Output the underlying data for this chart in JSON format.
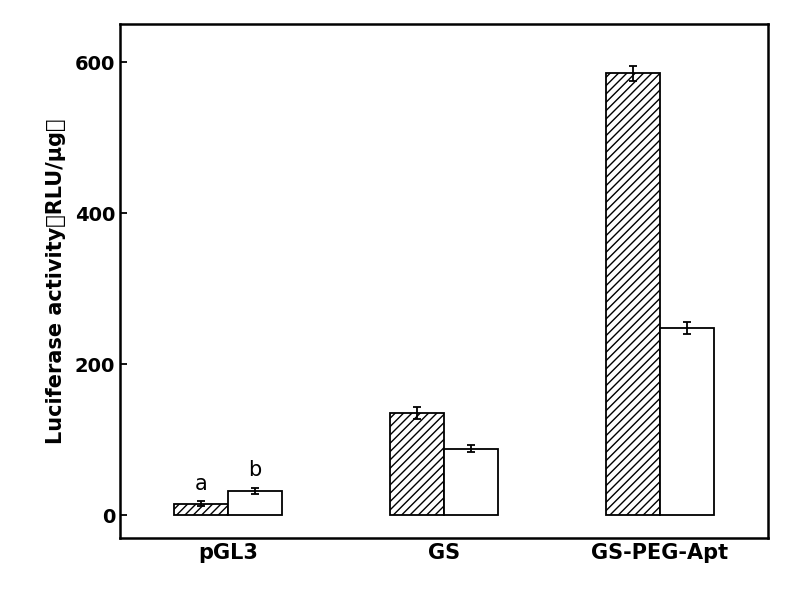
{
  "groups": [
    "pGL3",
    "GS",
    "GS-PEG-Apt"
  ],
  "hatched_values": [
    15,
    135,
    585
  ],
  "plain_values": [
    32,
    88,
    248
  ],
  "hatched_errors": [
    3,
    8,
    10
  ],
  "plain_errors": [
    4,
    5,
    8
  ],
  "annotations_hatched": [
    "a",
    null,
    null
  ],
  "annotations_plain": [
    "b",
    null,
    null
  ],
  "ylabel": "Luciferase activity（RLU/μg）",
  "ylim": [
    -30,
    650
  ],
  "yticks": [
    0,
    200,
    400,
    600
  ],
  "bar_width": 0.3,
  "group_positions": [
    1.0,
    2.2,
    3.4
  ],
  "hatch_pattern": "////",
  "bar_facecolor_hatched": "#ffffff",
  "bar_facecolor_plain": "#ffffff",
  "bar_edgecolor": "#000000",
  "background_color": "#ffffff",
  "font_size_labels": 15,
  "font_size_ticks": 14,
  "font_size_annotations": 15,
  "figsize": [
    8.0,
    6.11
  ],
  "dpi": 100
}
